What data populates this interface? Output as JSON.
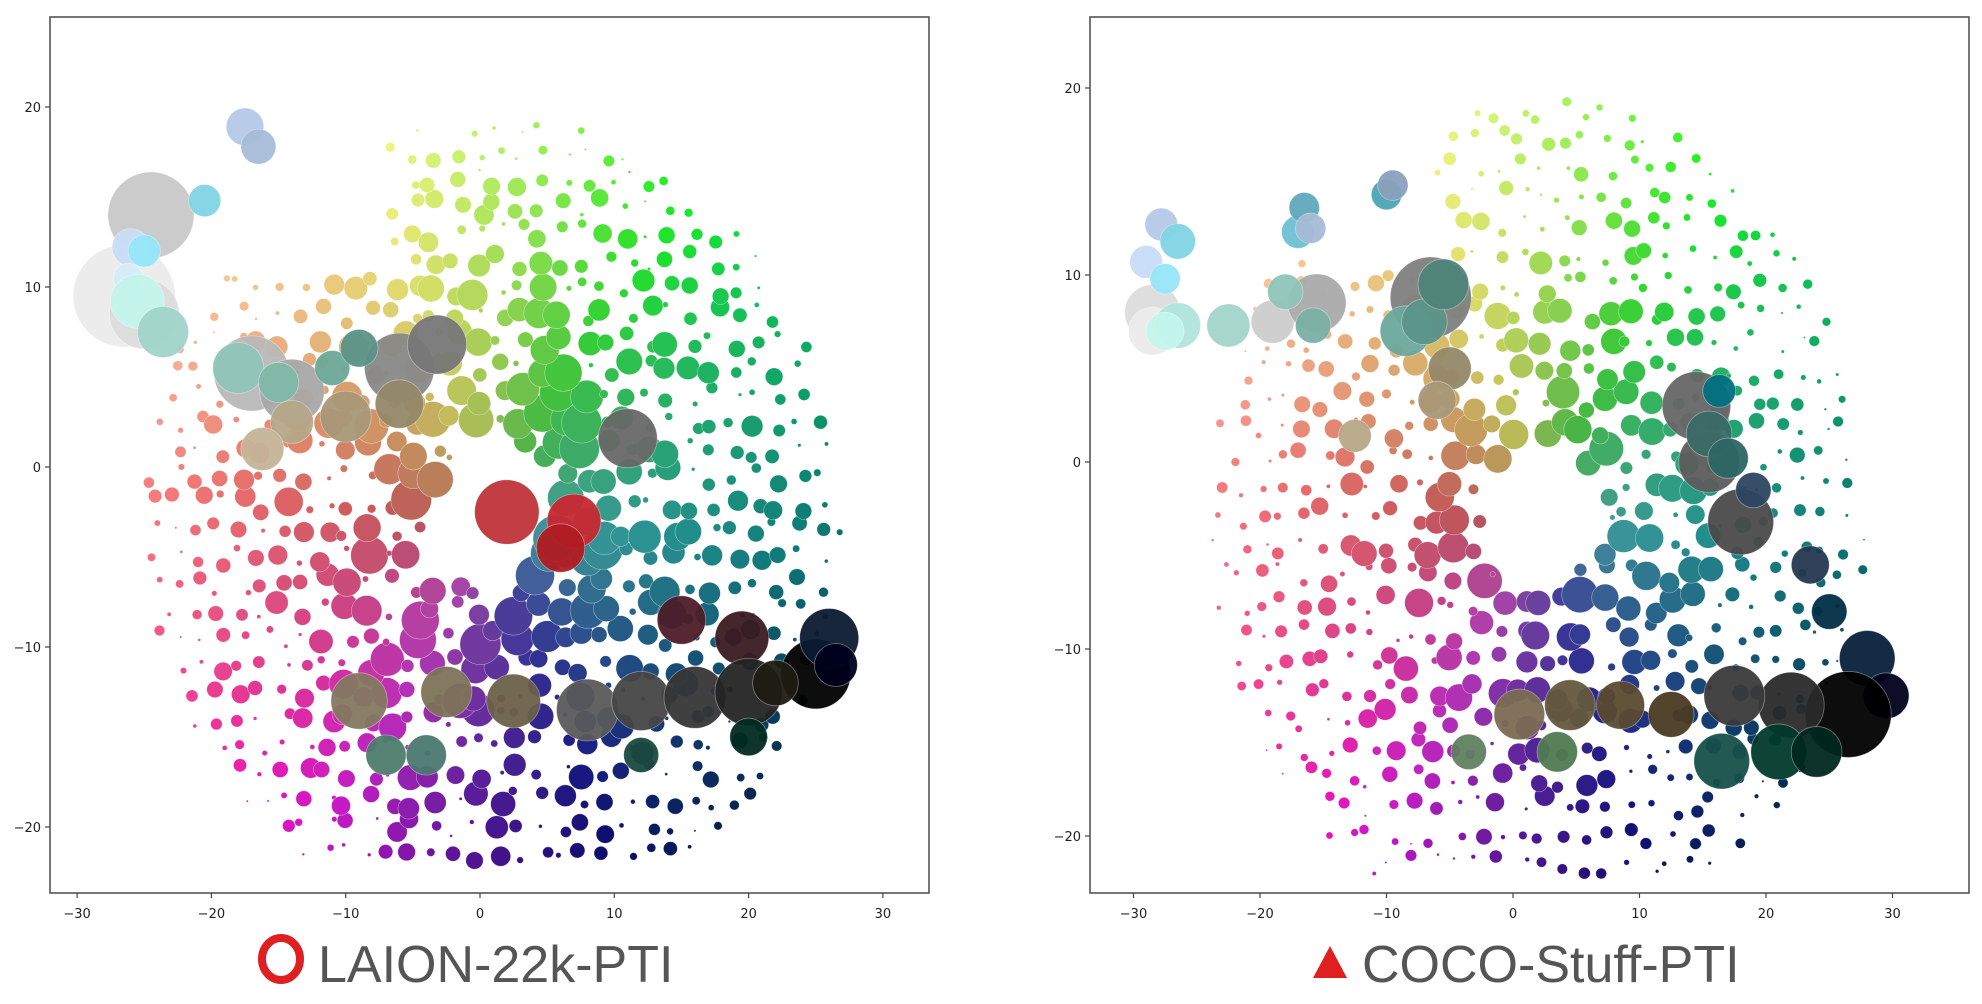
{
  "chart_data": [
    {
      "type": "scatter",
      "title": "LAION-22k-PTI",
      "marker": "ring",
      "marker_color": "#e02020",
      "xlabel": "",
      "ylabel": "",
      "xlim": [
        -32,
        33.5
      ],
      "ylim": [
        -23.5,
        25.2
      ],
      "xticks": [
        -30,
        -20,
        -10,
        0,
        10,
        20,
        30
      ],
      "yticks": [
        -20,
        -10,
        0,
        10,
        20
      ],
      "grid": false,
      "description": "Bubble scatter of colors arranged by hue around center; bubble size = frequency; bubble fill = the color itself",
      "color_center": [
        1,
        -3
      ],
      "key_bubbles": [
        {
          "x": -24.5,
          "y": 14,
          "r": 3.2,
          "color": "#c8c8c8"
        },
        {
          "x": -26.5,
          "y": 9.5,
          "r": 3.8,
          "color": "#ebebeb"
        },
        {
          "x": -25,
          "y": 8.5,
          "r": 2.6,
          "color": "#dcdcdc"
        },
        {
          "x": -26,
          "y": 12.2,
          "r": 1.4,
          "color": "#c8dcf8"
        },
        {
          "x": -25,
          "y": 12,
          "r": 1.2,
          "color": "#96e6f8"
        },
        {
          "x": -26.2,
          "y": 10.5,
          "r": 1.1,
          "color": "#d6ecfa"
        },
        {
          "x": -25.5,
          "y": 9.2,
          "r": 2.0,
          "color": "#c2f4ea"
        },
        {
          "x": -23.6,
          "y": 7.5,
          "r": 1.9,
          "color": "#a0d4c8"
        },
        {
          "x": -20.5,
          "y": 14.8,
          "r": 1.2,
          "color": "#80d4e4"
        },
        {
          "x": -17.5,
          "y": 18.9,
          "r": 1.4,
          "color": "#b4c8e8"
        },
        {
          "x": -16.5,
          "y": 17.8,
          "r": 1.3,
          "color": "#a8bcd8"
        },
        {
          "x": -17,
          "y": 5.2,
          "r": 2.8,
          "color": "#b8b8b8"
        },
        {
          "x": -18,
          "y": 5.5,
          "r": 1.9,
          "color": "#90c4b8"
        },
        {
          "x": -14,
          "y": 4.2,
          "r": 2.4,
          "color": "#a8a8a8"
        },
        {
          "x": -15,
          "y": 4.7,
          "r": 1.5,
          "color": "#80b8a8"
        },
        {
          "x": -11,
          "y": 5.5,
          "r": 1.3,
          "color": "#6ca898"
        },
        {
          "x": -6,
          "y": 5.5,
          "r": 2.6,
          "color": "#888888"
        },
        {
          "x": -3.2,
          "y": 6.8,
          "r": 2.2,
          "color": "#777777"
        },
        {
          "x": -9,
          "y": 6.6,
          "r": 1.4,
          "color": "#5a9288"
        },
        {
          "x": -6,
          "y": 3.5,
          "r": 1.8,
          "color": "#958868"
        },
        {
          "x": -10,
          "y": 2.8,
          "r": 1.9,
          "color": "#a89878"
        },
        {
          "x": -14,
          "y": 2.5,
          "r": 1.6,
          "color": "#b4a688"
        },
        {
          "x": -16.2,
          "y": 1,
          "r": 1.6,
          "color": "#c4b496"
        },
        {
          "x": 11,
          "y": 1.6,
          "r": 2.2,
          "color": "#686868"
        },
        {
          "x": 7,
          "y": -3,
          "r": 2.0,
          "color": "#c82830"
        },
        {
          "x": 2,
          "y": -2.5,
          "r": 2.4,
          "color": "#c03438"
        },
        {
          "x": 6,
          "y": -4.5,
          "r": 1.8,
          "color": "#b01c22"
        },
        {
          "x": 15,
          "y": -8.5,
          "r": 1.8,
          "color": "#4c1c28"
        },
        {
          "x": 19.5,
          "y": -9.5,
          "r": 2.0,
          "color": "#3a1a22"
        },
        {
          "x": 25,
          "y": -11.5,
          "r": 2.6,
          "color": "#000000"
        },
        {
          "x": 26,
          "y": -9.5,
          "r": 2.2,
          "color": "#0c1a30"
        },
        {
          "x": 26.5,
          "y": -11,
          "r": 1.6,
          "color": "#00001c"
        },
        {
          "x": -9,
          "y": -13,
          "r": 2.1,
          "color": "#847860"
        },
        {
          "x": -2.5,
          "y": -12.5,
          "r": 1.9,
          "color": "#7d7358"
        },
        {
          "x": 2.5,
          "y": -13,
          "r": 2.0,
          "color": "#6c6048"
        },
        {
          "x": 8,
          "y": -13.5,
          "r": 2.3,
          "color": "#5a5a5a"
        },
        {
          "x": 12,
          "y": -13,
          "r": 2.2,
          "color": "#464646"
        },
        {
          "x": 16,
          "y": -12.8,
          "r": 2.3,
          "color": "#363636"
        },
        {
          "x": 20,
          "y": -12.5,
          "r": 2.5,
          "color": "#242424"
        },
        {
          "x": 22,
          "y": -12,
          "r": 1.7,
          "color": "#1c1c12"
        },
        {
          "x": -7,
          "y": -16,
          "r": 1.5,
          "color": "#4d7c6c"
        },
        {
          "x": -4,
          "y": -16,
          "r": 1.5,
          "color": "#4a7870"
        },
        {
          "x": 12,
          "y": -16,
          "r": 1.3,
          "color": "#1a4a3e"
        },
        {
          "x": 20,
          "y": -15,
          "r": 1.4,
          "color": "#012a20"
        }
      ],
      "field": {
        "x_range": [
          -29,
          29
        ],
        "y_range": [
          -21.5,
          23
        ],
        "step_x": 1.6,
        "step_y": 1.5,
        "max_radius": 1.1,
        "seed": 7
      }
    },
    {
      "type": "scatter",
      "title": "COCO-Stuff-PTI",
      "marker": "triangle",
      "marker_color": "#e02020",
      "xlabel": "",
      "ylabel": "",
      "xlim": [
        -33.5,
        33.2
      ],
      "ylim": [
        -23.1,
        24.3
      ],
      "xticks": [
        -30,
        -20,
        -10,
        0,
        10,
        20,
        30
      ],
      "yticks": [
        -20,
        -10,
        0,
        10,
        20
      ],
      "grid": false,
      "description": "Bubble scatter of colors arranged by hue around center; bubble size = frequency; bubble fill = the color itself",
      "color_center": [
        2,
        -3
      ],
      "key_bubbles": [
        {
          "x": -28.5,
          "y": 8,
          "r": 2.2,
          "color": "#dcdcdc"
        },
        {
          "x": -28.5,
          "y": 7,
          "r": 1.9,
          "color": "#ebebeb"
        },
        {
          "x": -26.5,
          "y": 7.3,
          "r": 1.8,
          "color": "#b0e4dc"
        },
        {
          "x": -27.5,
          "y": 7,
          "r": 1.5,
          "color": "#c4f6ec"
        },
        {
          "x": -27.8,
          "y": 12.7,
          "r": 1.3,
          "color": "#b4c8e8"
        },
        {
          "x": -26.5,
          "y": 11.8,
          "r": 1.4,
          "color": "#80d4e4"
        },
        {
          "x": -29,
          "y": 10.7,
          "r": 1.3,
          "color": "#c8dcf8"
        },
        {
          "x": -27.5,
          "y": 9.8,
          "r": 1.2,
          "color": "#96e6f8"
        },
        {
          "x": -22.5,
          "y": 7.3,
          "r": 1.7,
          "color": "#a2d4c9"
        },
        {
          "x": -19,
          "y": 7.5,
          "r": 1.7,
          "color": "#cccccc"
        },
        {
          "x": -15.5,
          "y": 8.5,
          "r": 2.3,
          "color": "#aaaaaa"
        },
        {
          "x": -18,
          "y": 9.1,
          "r": 1.4,
          "color": "#8fc4b8"
        },
        {
          "x": -15.8,
          "y": 7.3,
          "r": 1.4,
          "color": "#7ab0a3"
        },
        {
          "x": -17,
          "y": 12.3,
          "r": 1.3,
          "color": "#70c0d4"
        },
        {
          "x": -16.5,
          "y": 13.6,
          "r": 1.2,
          "color": "#60a8bc"
        },
        {
          "x": -16,
          "y": 12.5,
          "r": 1.2,
          "color": "#a6bad6"
        },
        {
          "x": -10,
          "y": 14.3,
          "r": 1.2,
          "color": "#4ca4b4"
        },
        {
          "x": -9.5,
          "y": 14.8,
          "r": 1.2,
          "color": "#8aa0bc"
        },
        {
          "x": -6.5,
          "y": 8.8,
          "r": 3.2,
          "color": "#808080"
        },
        {
          "x": -8.5,
          "y": 7,
          "r": 2.0,
          "color": "#6ca89c"
        },
        {
          "x": -7,
          "y": 7.5,
          "r": 1.8,
          "color": "#5c9488"
        },
        {
          "x": -5.5,
          "y": 9.5,
          "r": 2.0,
          "color": "#4e8478"
        },
        {
          "x": -5,
          "y": 5,
          "r": 1.7,
          "color": "#958868"
        },
        {
          "x": -6,
          "y": 3.3,
          "r": 1.5,
          "color": "#a89878"
        },
        {
          "x": -12.5,
          "y": 1.4,
          "r": 1.3,
          "color": "#b8a888"
        },
        {
          "x": 14.5,
          "y": 3,
          "r": 2.7,
          "color": "#666666"
        },
        {
          "x": 15.5,
          "y": 0,
          "r": 2.4,
          "color": "#5c5c5c"
        },
        {
          "x": 18,
          "y": -3.2,
          "r": 2.6,
          "color": "#4a4a4a"
        },
        {
          "x": 15.5,
          "y": 1.5,
          "r": 1.8,
          "color": "#3a6a66"
        },
        {
          "x": 17,
          "y": 0.2,
          "r": 1.6,
          "color": "#2c6664"
        },
        {
          "x": 16.3,
          "y": 3.8,
          "r": 1.3,
          "color": "#007080"
        },
        {
          "x": 19,
          "y": -1.5,
          "r": 1.4,
          "color": "#2c4660"
        },
        {
          "x": 23.5,
          "y": -5.5,
          "r": 1.5,
          "color": "#243850"
        },
        {
          "x": 25,
          "y": -8,
          "r": 1.4,
          "color": "#002d44"
        },
        {
          "x": 28,
          "y": -10.5,
          "r": 2.2,
          "color": "#06203a"
        },
        {
          "x": 29.5,
          "y": -12.5,
          "r": 1.8,
          "color": "#00001c"
        },
        {
          "x": 26.5,
          "y": -13.5,
          "r": 3.4,
          "color": "#000000"
        },
        {
          "x": 22,
          "y": -13,
          "r": 2.6,
          "color": "#2a2a2a"
        },
        {
          "x": 17.5,
          "y": -12.5,
          "r": 2.4,
          "color": "#3a3a3a"
        },
        {
          "x": 12.5,
          "y": -13.5,
          "r": 1.8,
          "color": "#4a3a22"
        },
        {
          "x": 8.5,
          "y": -13,
          "r": 1.9,
          "color": "#5a4a30"
        },
        {
          "x": 4.5,
          "y": -13,
          "r": 2.0,
          "color": "#64583c"
        },
        {
          "x": 0.5,
          "y": -13.5,
          "r": 2.0,
          "color": "#7a6c52"
        },
        {
          "x": 16.5,
          "y": -16,
          "r": 2.2,
          "color": "#16504a"
        },
        {
          "x": 21,
          "y": -15.5,
          "r": 2.2,
          "color": "#003a2a"
        },
        {
          "x": 24,
          "y": -15.5,
          "r": 2.0,
          "color": "#00281c"
        },
        {
          "x": 3.5,
          "y": -15.5,
          "r": 1.6,
          "color": "#507a50"
        },
        {
          "x": -3.5,
          "y": -15.5,
          "r": 1.4,
          "color": "#608060"
        }
      ],
      "field": {
        "x_range": [
          -30,
          30
        ],
        "y_range": [
          -21.5,
          21.5
        ],
        "step_x": 1.7,
        "step_y": 1.55,
        "max_radius": 0.9,
        "seed": 11
      }
    }
  ],
  "panels": [
    {
      "caption": "LAION-22k-PTI",
      "xticks": [
        "−30",
        "−20",
        "−10",
        "0",
        "10",
        "20",
        "30"
      ],
      "yticks": [
        "−20",
        "−10",
        "0",
        "10",
        "20"
      ]
    },
    {
      "caption": "COCO-Stuff-PTI",
      "xticks": [
        "−30",
        "−20",
        "−10",
        "0",
        "10",
        "20",
        "30"
      ],
      "yticks": [
        "−20",
        "−10",
        "0",
        "10",
        "20"
      ]
    }
  ],
  "colors": {
    "spine": "#555555",
    "tick_text": "#222222",
    "caption_text": "#555555",
    "marker_red": "#e02020"
  }
}
